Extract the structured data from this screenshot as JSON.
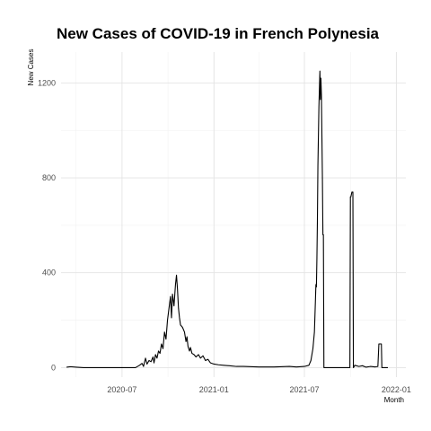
{
  "chart_data": {
    "type": "line",
    "title": "New Cases of COVID-19 in French Polynesia",
    "xlabel": "Month",
    "ylabel": "New Cases",
    "xlim": [
      "2020-03-01",
      "2022-01-20"
    ],
    "ylim": [
      -40,
      1330
    ],
    "grid": true,
    "x_ticks": [
      {
        "date": "2020-07-01",
        "label": "2020-07"
      },
      {
        "date": "2021-01-01",
        "label": "2021-01"
      },
      {
        "date": "2021-07-01",
        "label": "2021-07"
      },
      {
        "date": "2022-01-01",
        "label": "2022-01"
      }
    ],
    "y_ticks": [
      {
        "value": 0,
        "label": "0"
      },
      {
        "value": 400,
        "label": "400"
      },
      {
        "value": 800,
        "label": "800"
      },
      {
        "value": 1200,
        "label": "1200"
      }
    ],
    "series": [
      {
        "points": [
          [
            "2020-03-12",
            2
          ],
          [
            "2020-03-20",
            4
          ],
          [
            "2020-04-01",
            2
          ],
          [
            "2020-04-15",
            0
          ],
          [
            "2020-05-01",
            0
          ],
          [
            "2020-06-01",
            0
          ],
          [
            "2020-07-01",
            0
          ],
          [
            "2020-07-28",
            0
          ],
          [
            "2020-08-05",
            10
          ],
          [
            "2020-08-10",
            18
          ],
          [
            "2020-08-13",
            5
          ],
          [
            "2020-08-17",
            40
          ],
          [
            "2020-08-20",
            15
          ],
          [
            "2020-08-24",
            30
          ],
          [
            "2020-08-28",
            25
          ],
          [
            "2020-09-01",
            45
          ],
          [
            "2020-09-03",
            20
          ],
          [
            "2020-09-06",
            55
          ],
          [
            "2020-09-09",
            40
          ],
          [
            "2020-09-12",
            70
          ],
          [
            "2020-09-15",
            60
          ],
          [
            "2020-09-18",
            100
          ],
          [
            "2020-09-21",
            80
          ],
          [
            "2020-09-24",
            150
          ],
          [
            "2020-09-27",
            120
          ],
          [
            "2020-09-30",
            200
          ],
          [
            "2020-10-03",
            250
          ],
          [
            "2020-10-06",
            300
          ],
          [
            "2020-10-08",
            210
          ],
          [
            "2020-10-10",
            310
          ],
          [
            "2020-10-13",
            260
          ],
          [
            "2020-10-16",
            350
          ],
          [
            "2020-10-18",
            390
          ],
          [
            "2020-10-20",
            330
          ],
          [
            "2020-10-22",
            250
          ],
          [
            "2020-10-24",
            210
          ],
          [
            "2020-10-26",
            180
          ],
          [
            "2020-10-30",
            170
          ],
          [
            "2020-11-03",
            150
          ],
          [
            "2020-11-06",
            110
          ],
          [
            "2020-11-08",
            130
          ],
          [
            "2020-11-10",
            90
          ],
          [
            "2020-11-13",
            70
          ],
          [
            "2020-11-15",
            85
          ],
          [
            "2020-11-18",
            60
          ],
          [
            "2020-11-22",
            55
          ],
          [
            "2020-11-26",
            45
          ],
          [
            "2020-12-01",
            55
          ],
          [
            "2020-12-05",
            40
          ],
          [
            "2020-12-10",
            50
          ],
          [
            "2020-12-15",
            30
          ],
          [
            "2020-12-20",
            35
          ],
          [
            "2020-12-25",
            20
          ],
          [
            "2021-01-01",
            15
          ],
          [
            "2021-01-10",
            12
          ],
          [
            "2021-01-20",
            10
          ],
          [
            "2021-02-01",
            8
          ],
          [
            "2021-02-15",
            5
          ],
          [
            "2021-03-01",
            5
          ],
          [
            "2021-04-01",
            3
          ],
          [
            "2021-05-01",
            3
          ],
          [
            "2021-06-01",
            5
          ],
          [
            "2021-06-15",
            3
          ],
          [
            "2021-07-01",
            5
          ],
          [
            "2021-07-10",
            10
          ],
          [
            "2021-07-14",
            30
          ],
          [
            "2021-07-18",
            80
          ],
          [
            "2021-07-21",
            150
          ],
          [
            "2021-07-23",
            280
          ],
          [
            "2021-07-24",
            350
          ],
          [
            "2021-07-25",
            340
          ],
          [
            "2021-07-26",
            460
          ],
          [
            "2021-07-27",
            620
          ],
          [
            "2021-07-28",
            850
          ],
          [
            "2021-07-30",
            1100
          ],
          [
            "2021-08-01",
            1250
          ],
          [
            "2021-08-02",
            1130
          ],
          [
            "2021-08-03",
            1220
          ],
          [
            "2021-08-04",
            1150
          ],
          [
            "2021-08-06",
            800
          ],
          [
            "2021-08-07",
            560
          ],
          [
            "2021-08-08",
            560
          ],
          [
            "2021-08-09",
            0
          ],
          [
            "2021-09-30",
            0
          ],
          [
            "2021-10-01",
            720
          ],
          [
            "2021-10-02",
            720
          ],
          [
            "2021-10-04",
            740
          ],
          [
            "2021-10-06",
            740
          ],
          [
            "2021-10-07",
            0
          ],
          [
            "2021-10-10",
            10
          ],
          [
            "2021-10-18",
            5
          ],
          [
            "2021-10-25",
            8
          ],
          [
            "2021-11-01",
            2
          ],
          [
            "2021-11-10",
            5
          ],
          [
            "2021-11-20",
            3
          ],
          [
            "2021-11-25",
            5
          ],
          [
            "2021-11-27",
            100
          ],
          [
            "2021-12-02",
            100
          ],
          [
            "2021-12-03",
            0
          ],
          [
            "2021-12-15",
            0
          ]
        ]
      }
    ]
  }
}
